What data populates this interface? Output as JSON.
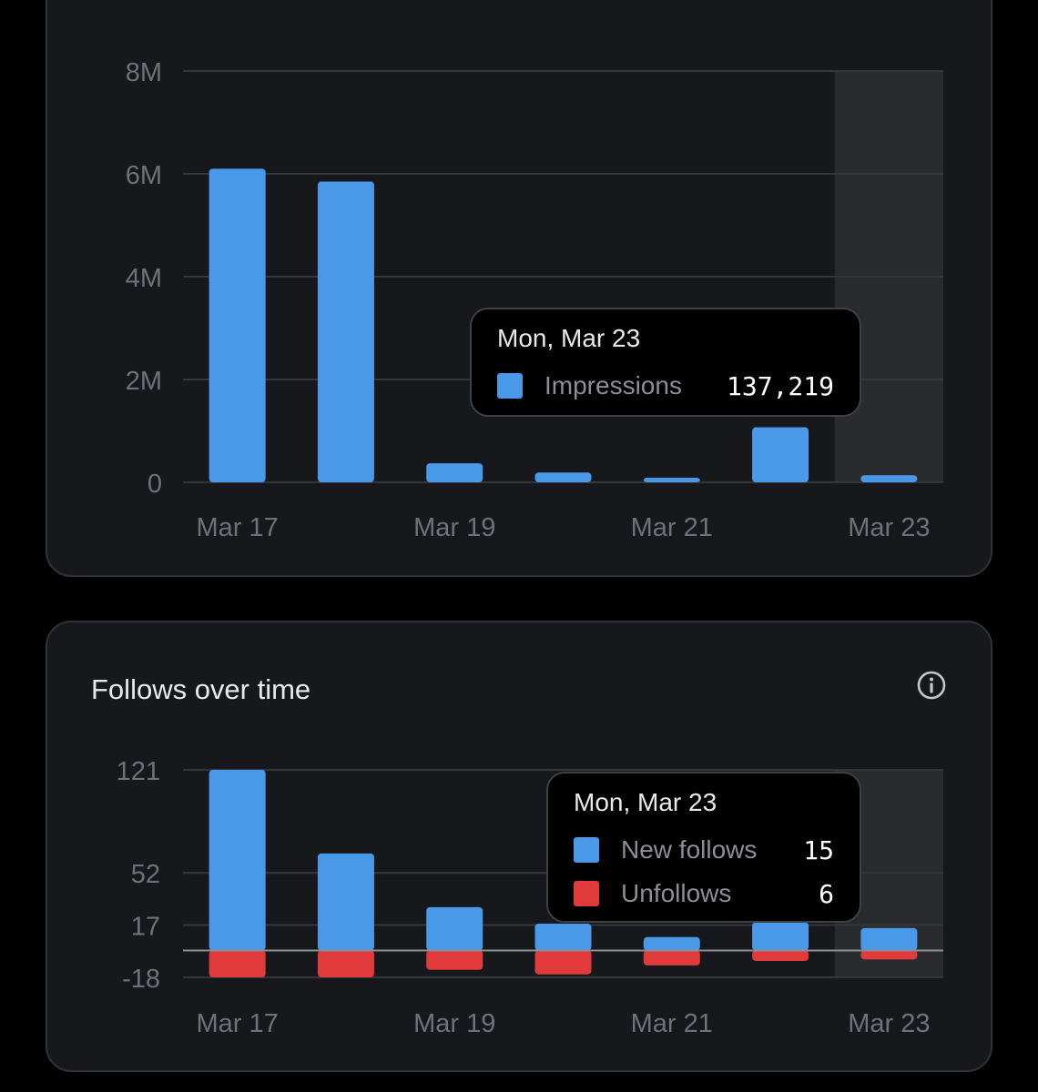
{
  "theme": {
    "background": "#000000",
    "card": "#16181c",
    "grid": "#33363b",
    "highlight_band": "#2a2b2e",
    "axis_text": "#6e7276",
    "blue": "#4a99e9",
    "red": "#e03a3a"
  },
  "impressions_chart": {
    "tooltip": {
      "date": "Mon, Mar 23",
      "rows": [
        {
          "label": "Impressions",
          "value": "137,219",
          "color": "#4a99e9"
        }
      ]
    }
  },
  "follows_chart": {
    "title": "Follows over time",
    "info_icon": "info-circle-icon",
    "tooltip": {
      "date": "Mon, Mar 23",
      "rows": [
        {
          "label": "New follows",
          "value": "15",
          "color": "#4a99e9"
        },
        {
          "label": "Unfollows",
          "value": "6",
          "color": "#e03a3a"
        }
      ]
    }
  },
  "chart_data": [
    {
      "type": "bar",
      "categories": [
        "Mar 17",
        "Mar 18",
        "Mar 19",
        "Mar 20",
        "Mar 21",
        "Mar 22",
        "Mar 23"
      ],
      "x_tick_labels": [
        "Mar 17",
        "Mar 19",
        "Mar 21",
        "Mar 23"
      ],
      "series": [
        {
          "name": "Impressions",
          "values": [
            6100000,
            5850000,
            370000,
            190000,
            80000,
            1070000,
            137219
          ],
          "color": "#4a99e9"
        }
      ],
      "y_ticks": [
        0,
        2000000,
        4000000,
        6000000,
        8000000
      ],
      "y_tick_labels": [
        "0",
        "2M",
        "4M",
        "6M",
        "8M"
      ],
      "ylim": [
        0,
        8000000
      ],
      "highlighted_category": "Mar 23",
      "grid": true,
      "title": "",
      "xlabel": "",
      "ylabel": ""
    },
    {
      "type": "bar",
      "categories": [
        "Mar 17",
        "Mar 18",
        "Mar 19",
        "Mar 20",
        "Mar 21",
        "Mar 22",
        "Mar 23"
      ],
      "x_tick_labels": [
        "Mar 17",
        "Mar 19",
        "Mar 21",
        "Mar 23"
      ],
      "series": [
        {
          "name": "New follows",
          "values": [
            121,
            65,
            29,
            18,
            9,
            19,
            15
          ],
          "color": "#4a99e9"
        },
        {
          "name": "Unfollows",
          "values": [
            -18,
            -18,
            -13,
            -16,
            -10,
            -7,
            -6
          ],
          "color": "#e03a3a"
        }
      ],
      "y_ticks": [
        -18,
        17,
        52,
        121
      ],
      "y_tick_labels": [
        "-18",
        "17",
        "52",
        "121"
      ],
      "ylim": [
        -18,
        121
      ],
      "highlighted_category": "Mar 23",
      "grid": true,
      "title": "Follows over time",
      "xlabel": "",
      "ylabel": ""
    }
  ]
}
